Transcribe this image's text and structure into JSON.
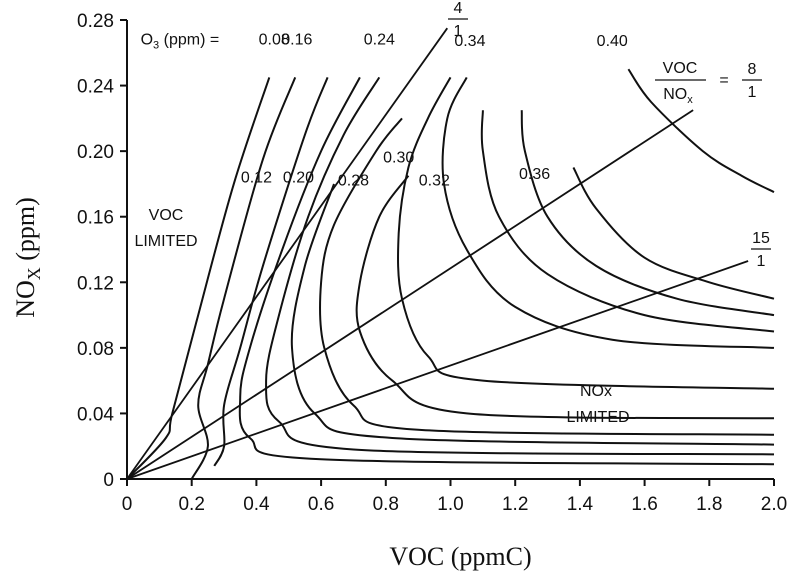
{
  "chart_data": {
    "type": "line",
    "title": "",
    "xlabel": "VOC (ppmC)",
    "ylabel_main": "NO",
    "ylabel_sub": "X",
    "ylabel_unit": " (ppm)",
    "xlim": [
      0,
      2.0
    ],
    "ylim": [
      0,
      0.28
    ],
    "x_ticks": [
      "0",
      "0.2",
      "0.4",
      "0.6",
      "0.8",
      "1.0",
      "1.2",
      "1.4",
      "1.6",
      "1.8",
      "2.0"
    ],
    "x_tick_values": [
      0,
      0.2,
      0.4,
      0.6,
      0.8,
      1.0,
      1.2,
      1.4,
      1.6,
      1.8,
      2.0
    ],
    "y_ticks": [
      "0",
      "0.04",
      "0.08",
      "0.12",
      "0.16",
      "0.20",
      "0.24",
      "0.28"
    ],
    "y_tick_values": [
      0,
      0.04,
      0.08,
      0.12,
      0.16,
      0.2,
      0.24,
      0.28
    ],
    "contour_label_prefix": "O",
    "contour_label_prefix_sub": "3",
    "contour_label_prefix_unit": " (ppm) = ",
    "series": [
      {
        "name": "0.08",
        "points": [
          [
            0,
            0
          ],
          [
            0.12,
            0.025
          ],
          [
            0.14,
            0.04
          ],
          [
            0.22,
            0.1
          ],
          [
            0.33,
            0.18
          ],
          [
            0.44,
            0.245
          ]
        ]
      },
      {
        "name": "0.12",
        "points": [
          [
            0.2,
            0.0
          ],
          [
            0.25,
            0.02
          ],
          [
            0.22,
            0.045
          ],
          [
            0.25,
            0.07
          ],
          [
            0.3,
            0.11
          ],
          [
            0.42,
            0.195
          ],
          [
            0.52,
            0.245
          ]
        ]
      },
      {
        "name": "0.16",
        "points": [
          [
            0.27,
            0.008
          ],
          [
            0.3,
            0.02
          ],
          [
            0.3,
            0.045
          ],
          [
            0.35,
            0.08
          ],
          [
            0.42,
            0.13
          ],
          [
            0.55,
            0.21
          ],
          [
            0.62,
            0.245
          ]
        ]
      },
      {
        "name": "0.20",
        "points": [
          [
            2.0,
            0.009
          ],
          [
            0.6,
            0.012
          ],
          [
            0.38,
            0.025
          ],
          [
            0.35,
            0.05
          ],
          [
            0.38,
            0.08
          ],
          [
            0.48,
            0.14
          ],
          [
            0.6,
            0.2
          ],
          [
            0.72,
            0.245
          ]
        ]
      },
      {
        "name": "0.24",
        "points": [
          [
            2.0,
            0.015
          ],
          [
            0.7,
            0.018
          ],
          [
            0.47,
            0.035
          ],
          [
            0.43,
            0.06
          ],
          [
            0.47,
            0.1
          ],
          [
            0.56,
            0.16
          ],
          [
            0.67,
            0.21
          ],
          [
            0.78,
            0.245
          ]
        ]
      },
      {
        "name": "0.28",
        "points": [
          [
            2.0,
            0.021
          ],
          [
            0.82,
            0.025
          ],
          [
            0.58,
            0.04
          ],
          [
            0.51,
            0.08
          ],
          [
            0.55,
            0.13
          ],
          [
            0.64,
            0.18
          ]
        ]
      },
      {
        "name": "0.30",
        "points": [
          [
            2.0,
            0.027
          ],
          [
            0.9,
            0.03
          ],
          [
            0.7,
            0.045
          ],
          [
            0.61,
            0.08
          ],
          [
            0.6,
            0.12
          ],
          [
            0.64,
            0.155
          ],
          [
            0.77,
            0.2
          ],
          [
            0.85,
            0.22
          ]
        ]
      },
      {
        "name": "0.32",
        "points": [
          [
            2.0,
            0.037
          ],
          [
            1.05,
            0.04
          ],
          [
            0.82,
            0.06
          ],
          [
            0.72,
            0.09
          ],
          [
            0.72,
            0.12
          ],
          [
            0.78,
            0.16
          ],
          [
            0.87,
            0.185
          ]
        ]
      },
      {
        "name": "0.34",
        "points": [
          [
            2.0,
            0.055
          ],
          [
            1.1,
            0.06
          ],
          [
            0.93,
            0.075
          ],
          [
            0.85,
            0.11
          ],
          [
            0.84,
            0.15
          ],
          [
            0.87,
            0.19
          ],
          [
            0.93,
            0.22
          ],
          [
            1.0,
            0.245
          ]
        ]
      },
      {
        "name": "0.36",
        "points": [
          [
            2.0,
            0.08
          ],
          [
            1.5,
            0.085
          ],
          [
            1.2,
            0.105
          ],
          [
            1.05,
            0.14
          ],
          [
            0.98,
            0.18
          ],
          [
            0.99,
            0.22
          ],
          [
            1.05,
            0.245
          ]
        ]
      },
      {
        "name": "",
        "points": [
          [
            2.0,
            0.09
          ],
          [
            1.6,
            0.1
          ],
          [
            1.3,
            0.125
          ],
          [
            1.15,
            0.16
          ],
          [
            1.1,
            0.2
          ],
          [
            1.1,
            0.225
          ]
        ]
      },
      {
        "name": "",
        "points": [
          [
            2.0,
            0.1
          ],
          [
            1.7,
            0.11
          ],
          [
            1.45,
            0.13
          ],
          [
            1.3,
            0.16
          ],
          [
            1.23,
            0.2
          ],
          [
            1.22,
            0.225
          ]
        ]
      },
      {
        "name": "",
        "points": [
          [
            2.0,
            0.11
          ],
          [
            1.8,
            0.12
          ],
          [
            1.6,
            0.135
          ],
          [
            1.45,
            0.165
          ],
          [
            1.38,
            0.19
          ]
        ]
      },
      {
        "name": "0.40",
        "points": [
          [
            2.0,
            0.175
          ],
          [
            1.9,
            0.185
          ],
          [
            1.78,
            0.2
          ],
          [
            1.62,
            0.23
          ],
          [
            1.55,
            0.25
          ]
        ]
      }
    ],
    "ratio_lines": [
      {
        "name": "4/1",
        "numerator": "4",
        "denominator": "1",
        "end": [
          0.99,
          0.275
        ]
      },
      {
        "name": "8/1",
        "numerator": "8",
        "denominator": "1",
        "end": [
          1.75,
          0.225
        ]
      },
      {
        "name": "15/1",
        "numerator": "15",
        "denominator": "1",
        "end": [
          1.92,
          0.133
        ]
      }
    ],
    "annotations": {
      "voc_limited_line1": "VOC",
      "voc_limited_line2": "LIMITED",
      "nox_limited_line1": "NOx",
      "nox_limited_line2": "LIMITED",
      "ratio_label_top": "VOC",
      "ratio_label_bottom_main": "NO",
      "ratio_label_bottom_sub": "x",
      "ratio_label_equals": "="
    }
  }
}
